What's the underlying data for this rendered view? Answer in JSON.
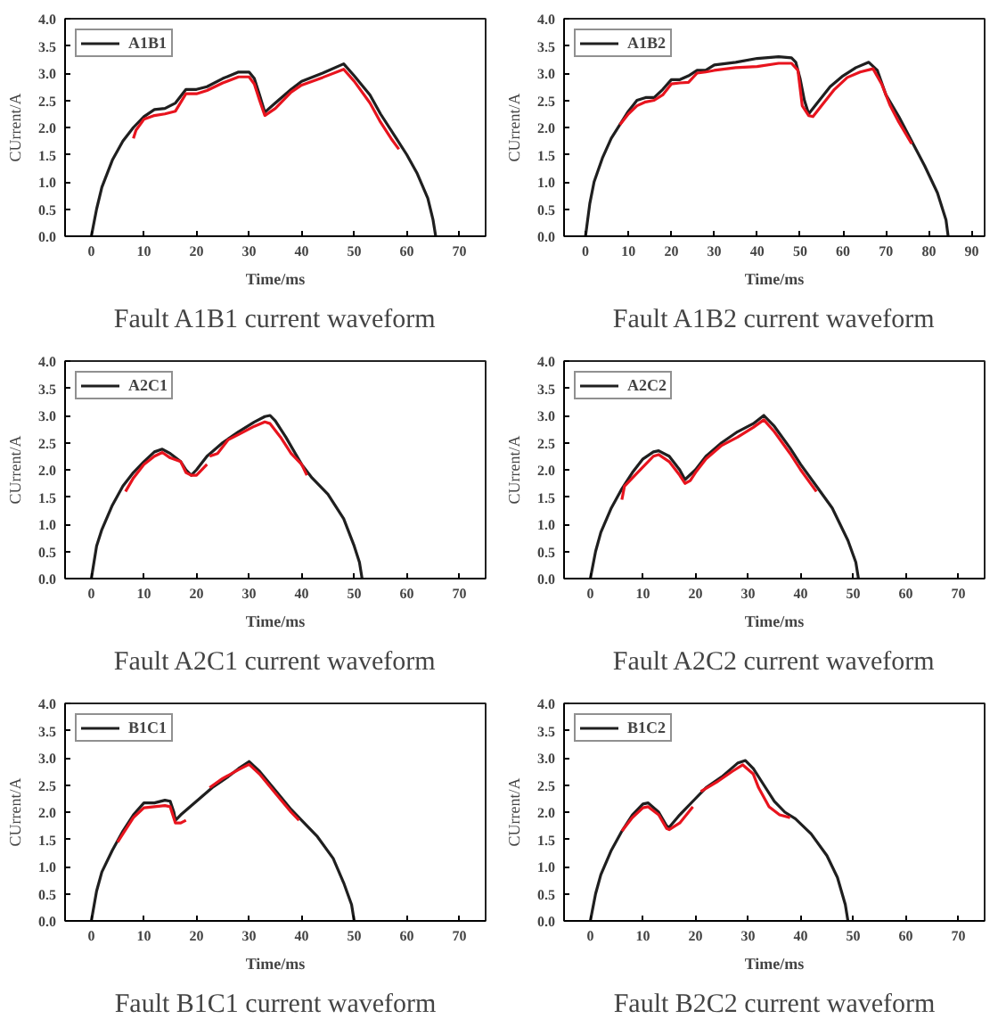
{
  "chart_data": [
    {
      "type": "line",
      "title": "Fault A1B1 current waveform",
      "xlabel": "Time/ms",
      "ylabel": "CUrrent/A",
      "xlim": [
        -5,
        75
      ],
      "xticks": [
        0,
        10,
        20,
        30,
        40,
        50,
        60,
        70
      ],
      "ylim": [
        0,
        4
      ],
      "yticks": [
        {
          "value": 0,
          "label": "0.0"
        },
        {
          "value": 0.5,
          "label": "0.5"
        },
        {
          "value": 1,
          "label": "1.0"
        },
        {
          "value": 1.5,
          "label": "1.5"
        },
        {
          "value": 2,
          "label": "2.0"
        },
        {
          "value": 2.5,
          "label": "2.5"
        },
        {
          "value": 3,
          "label": "3.0"
        },
        {
          "value": 3.5,
          "label": "3.5"
        },
        {
          "value": 4,
          "label": "4.0"
        }
      ],
      "grid": false,
      "legend": "top left",
      "marker": "none",
      "line_style": "solid",
      "series": [
        {
          "name": "A1B1",
          "color": "#1f1f1f",
          "x": [
            0,
            1,
            2,
            4,
            6,
            8,
            10,
            12,
            14,
            16,
            18,
            20,
            22,
            25,
            28,
            30,
            31,
            32,
            33,
            35,
            38,
            40,
            44,
            48,
            50,
            53,
            55,
            58,
            60,
            62,
            64,
            65,
            65.5
          ],
          "values": [
            0,
            0.5,
            0.9,
            1.4,
            1.75,
            2.0,
            2.2,
            2.33,
            2.35,
            2.45,
            2.7,
            2.7,
            2.75,
            2.9,
            3.02,
            3.02,
            2.9,
            2.6,
            2.28,
            2.45,
            2.7,
            2.85,
            3.0,
            3.17,
            2.95,
            2.6,
            2.25,
            1.8,
            1.5,
            1.15,
            0.7,
            0.3,
            0
          ]
        },
        {
          "color": "#e8141e",
          "x": [
            8,
            8.5,
            10,
            12,
            14,
            16,
            18,
            20,
            22,
            25,
            28,
            30,
            31,
            32,
            33,
            35,
            38,
            40,
            44,
            48,
            50,
            53,
            55,
            57,
            58.5
          ],
          "values": [
            1.8,
            1.95,
            2.15,
            2.22,
            2.25,
            2.3,
            2.62,
            2.62,
            2.68,
            2.82,
            2.93,
            2.93,
            2.8,
            2.5,
            2.22,
            2.35,
            2.65,
            2.78,
            2.92,
            3.07,
            2.85,
            2.45,
            2.1,
            1.8,
            1.6
          ]
        }
      ]
    },
    {
      "type": "line",
      "title": "Fault A1B2 current waveform",
      "xlabel": "Time/ms",
      "ylabel": "CUrrent/A",
      "xlim": [
        -5,
        93
      ],
      "xticks": [
        0,
        10,
        20,
        30,
        40,
        50,
        60,
        70,
        80,
        90
      ],
      "ylim": [
        0,
        4
      ],
      "yticks": [
        {
          "value": 0,
          "label": "0.0"
        },
        {
          "value": 0.5,
          "label": "0.5"
        },
        {
          "value": 1,
          "label": "1.0"
        },
        {
          "value": 1.5,
          "label": "1.5"
        },
        {
          "value": 2,
          "label": "2.0"
        },
        {
          "value": 2.5,
          "label": "2.5"
        },
        {
          "value": 3,
          "label": "3.0"
        },
        {
          "value": 3.5,
          "label": "3.5"
        },
        {
          "value": 4,
          "label": "4.0"
        }
      ],
      "grid": false,
      "legend": "top left",
      "marker": "none",
      "line_style": "solid",
      "series": [
        {
          "name": "A1B2",
          "color": "#1f1f1f",
          "x": [
            0,
            1,
            2,
            4,
            6,
            8,
            10,
            12,
            14,
            16,
            18,
            20,
            22,
            24,
            26,
            28,
            30,
            35,
            40,
            45,
            48,
            49,
            50,
            51,
            52,
            54,
            57,
            60,
            63,
            66,
            68,
            70,
            73,
            76,
            79,
            82,
            84,
            84.5
          ],
          "values": [
            0,
            0.6,
            1.0,
            1.45,
            1.8,
            2.05,
            2.3,
            2.5,
            2.55,
            2.55,
            2.7,
            2.88,
            2.88,
            2.95,
            3.05,
            3.05,
            3.15,
            3.2,
            3.27,
            3.3,
            3.28,
            3.2,
            2.9,
            2.5,
            2.25,
            2.45,
            2.75,
            2.95,
            3.1,
            3.2,
            3.05,
            2.6,
            2.2,
            1.75,
            1.3,
            0.8,
            0.3,
            0
          ]
        },
        {
          "color": "#e8141e",
          "x": [
            8,
            10,
            12,
            14,
            16,
            18,
            20,
            22,
            24,
            26,
            28,
            30,
            35,
            40,
            45,
            48,
            49.5,
            50.5,
            52,
            53,
            55,
            58,
            61,
            64,
            67,
            69,
            71,
            73,
            76
          ],
          "values": [
            2.05,
            2.25,
            2.4,
            2.47,
            2.5,
            2.6,
            2.8,
            2.82,
            2.83,
            3.0,
            3.02,
            3.05,
            3.1,
            3.12,
            3.18,
            3.18,
            3.05,
            2.4,
            2.22,
            2.2,
            2.4,
            2.7,
            2.92,
            3.02,
            3.08,
            2.8,
            2.4,
            2.1,
            1.7
          ]
        }
      ]
    },
    {
      "type": "line",
      "title": "Fault A2C1 current waveform",
      "xlabel": "Time/ms",
      "ylabel": "CUrrent/A",
      "xlim": [
        -5,
        75
      ],
      "xticks": [
        0,
        10,
        20,
        30,
        40,
        50,
        60,
        70
      ],
      "ylim": [
        0,
        4
      ],
      "yticks": [
        {
          "value": 0,
          "label": "0.0"
        },
        {
          "value": 0.5,
          "label": "0.5"
        },
        {
          "value": 1,
          "label": "1.0"
        },
        {
          "value": 1.5,
          "label": "1.5"
        },
        {
          "value": 2,
          "label": "2.0"
        },
        {
          "value": 2.5,
          "label": "2.5"
        },
        {
          "value": 3,
          "label": "3.0"
        },
        {
          "value": 3.5,
          "label": "3.5"
        },
        {
          "value": 4,
          "label": "4.0"
        }
      ],
      "grid": false,
      "legend": "top left",
      "marker": "none",
      "line_style": "solid",
      "series": [
        {
          "name": "A2C1",
          "color": "#1f1f1f",
          "x": [
            0,
            1,
            2,
            4,
            6,
            8,
            10,
            12,
            13.5,
            15,
            17,
            18,
            19,
            20,
            22,
            25,
            28,
            31,
            33,
            34,
            35,
            37,
            40,
            42,
            45,
            48,
            50,
            51,
            51.5
          ],
          "values": [
            0,
            0.6,
            0.9,
            1.35,
            1.7,
            1.95,
            2.15,
            2.33,
            2.38,
            2.3,
            2.15,
            2.0,
            1.9,
            2.0,
            2.25,
            2.5,
            2.7,
            2.88,
            2.98,
            3.0,
            2.9,
            2.6,
            2.1,
            1.85,
            1.55,
            1.1,
            0.6,
            0.3,
            0
          ]
        },
        {
          "color": "#e8141e",
          "x": [
            6.5,
            8,
            10,
            12,
            13.5,
            15,
            17,
            18,
            19,
            20,
            22,
            null,
            22.5,
            24,
            26,
            28,
            31,
            33,
            34,
            36,
            38,
            40,
            41
          ],
          "values": [
            1.6,
            1.85,
            2.1,
            2.25,
            2.32,
            2.22,
            2.15,
            1.95,
            1.9,
            1.9,
            2.1,
            null,
            2.25,
            2.3,
            2.55,
            2.65,
            2.8,
            2.88,
            2.85,
            2.6,
            2.3,
            2.1,
            1.9
          ]
        }
      ]
    },
    {
      "type": "line",
      "title": "Fault A2C2 current waveform",
      "xlabel": "Time/ms",
      "ylabel": "CUrrent/A",
      "xlim": [
        -5,
        75
      ],
      "xticks": [
        0,
        10,
        20,
        30,
        40,
        50,
        60,
        70
      ],
      "ylim": [
        0,
        4
      ],
      "yticks": [
        {
          "value": 0,
          "label": "0.0"
        },
        {
          "value": 0.5,
          "label": "0.5"
        },
        {
          "value": 1,
          "label": "1.0"
        },
        {
          "value": 1.5,
          "label": "1.5"
        },
        {
          "value": 2,
          "label": "2.0"
        },
        {
          "value": 2.5,
          "label": "2.5"
        },
        {
          "value": 3,
          "label": "3.0"
        },
        {
          "value": 3.5,
          "label": "3.5"
        },
        {
          "value": 4,
          "label": "4.0"
        }
      ],
      "grid": false,
      "legend": "top left",
      "marker": "none",
      "line_style": "solid",
      "series": [
        {
          "name": "A2C2",
          "color": "#1f1f1f",
          "x": [
            0,
            1,
            2,
            4,
            6,
            8,
            10,
            12,
            13,
            15,
            17,
            18,
            20,
            22,
            25,
            28,
            31,
            33,
            35,
            38,
            40,
            43,
            46,
            49,
            50.5,
            51
          ],
          "values": [
            0,
            0.5,
            0.85,
            1.3,
            1.65,
            1.95,
            2.2,
            2.33,
            2.35,
            2.25,
            2.0,
            1.82,
            2.0,
            2.25,
            2.5,
            2.7,
            2.85,
            3.0,
            2.8,
            2.4,
            2.1,
            1.7,
            1.3,
            0.7,
            0.3,
            0
          ]
        },
        {
          "color": "#e8141e",
          "x": [
            6,
            6.5,
            8,
            10,
            12,
            13,
            15,
            17,
            18,
            19,
            20,
            22,
            25,
            28,
            31,
            33,
            35,
            38,
            40,
            43
          ],
          "values": [
            1.45,
            1.7,
            1.85,
            2.05,
            2.25,
            2.28,
            2.15,
            1.9,
            1.75,
            1.8,
            1.95,
            2.2,
            2.45,
            2.6,
            2.78,
            2.92,
            2.7,
            2.3,
            2.0,
            1.6
          ]
        }
      ]
    },
    {
      "type": "line",
      "title": "Fault B1C1 current waveform",
      "xlabel": "Time/ms",
      "ylabel": "CUrrent/A",
      "xlim": [
        -5,
        75
      ],
      "xticks": [
        0,
        10,
        20,
        30,
        40,
        50,
        60,
        70
      ],
      "ylim": [
        0,
        4
      ],
      "yticks": [
        {
          "value": 0,
          "label": "0.0"
        },
        {
          "value": 0.5,
          "label": "0.5"
        },
        {
          "value": 1,
          "label": "1.0"
        },
        {
          "value": 1.5,
          "label": "1.5"
        },
        {
          "value": 2,
          "label": "2.0"
        },
        {
          "value": 2.5,
          "label": "2.5"
        },
        {
          "value": 3,
          "label": "3.0"
        },
        {
          "value": 3.5,
          "label": "3.5"
        },
        {
          "value": 4,
          "label": "4.0"
        }
      ],
      "grid": false,
      "legend": "top left",
      "marker": "none",
      "line_style": "solid",
      "series": [
        {
          "name": "B1C1",
          "color": "#1f1f1f",
          "x": [
            0,
            1,
            2,
            4,
            6,
            8,
            10,
            12,
            14,
            15,
            15.7,
            16,
            17,
            20,
            23,
            26,
            28,
            30,
            32,
            35,
            38,
            40,
            43,
            46,
            48,
            49.5,
            50
          ],
          "values": [
            0,
            0.55,
            0.9,
            1.3,
            1.65,
            1.95,
            2.17,
            2.17,
            2.22,
            2.2,
            2.0,
            1.85,
            1.95,
            2.2,
            2.45,
            2.65,
            2.8,
            2.93,
            2.75,
            2.4,
            2.05,
            1.85,
            1.55,
            1.15,
            0.7,
            0.3,
            0
          ]
        },
        {
          "color": "#e8141e",
          "x": [
            5,
            6,
            8,
            10,
            12,
            14,
            15,
            16,
            17,
            18,
            null,
            22.5,
            25,
            28,
            30,
            32,
            35,
            38,
            39.5
          ],
          "values": [
            1.45,
            1.6,
            1.9,
            2.08,
            2.1,
            2.12,
            2.1,
            1.8,
            1.8,
            1.85,
            null,
            2.45,
            2.62,
            2.78,
            2.88,
            2.7,
            2.35,
            2.0,
            1.85
          ]
        }
      ]
    },
    {
      "type": "line",
      "title": "Fault B2C2 current waveform",
      "xlabel": "Time/ms",
      "ylabel": "CUrrent/A",
      "xlim": [
        -5,
        75
      ],
      "xticks": [
        0,
        10,
        20,
        30,
        40,
        50,
        60,
        70
      ],
      "ylim": [
        0,
        4
      ],
      "yticks": [
        {
          "value": 0,
          "label": "0.0"
        },
        {
          "value": 0.5,
          "label": "0.5"
        },
        {
          "value": 1,
          "label": "1.0"
        },
        {
          "value": 1.5,
          "label": "1.5"
        },
        {
          "value": 2,
          "label": "2.0"
        },
        {
          "value": 2.5,
          "label": "2.5"
        },
        {
          "value": 3,
          "label": "3.0"
        },
        {
          "value": 3.5,
          "label": "3.5"
        },
        {
          "value": 4,
          "label": "4.0"
        }
      ],
      "grid": false,
      "legend": "top left",
      "marker": "none",
      "line_style": "solid",
      "series": [
        {
          "name": "B1C2",
          "color": "#1f1f1f",
          "x": [
            0,
            1,
            2,
            4,
            6,
            8,
            10,
            11,
            13,
            14.5,
            15,
            17,
            20,
            22,
            25,
            28,
            29.5,
            31,
            33,
            35,
            37,
            39,
            42,
            45,
            47,
            48.5,
            49
          ],
          "values": [
            0,
            0.5,
            0.85,
            1.3,
            1.65,
            1.95,
            2.15,
            2.17,
            2.0,
            1.75,
            1.72,
            1.95,
            2.25,
            2.45,
            2.65,
            2.9,
            2.95,
            2.8,
            2.5,
            2.2,
            2.0,
            1.88,
            1.6,
            1.2,
            0.8,
            0.3,
            0
          ]
        },
        {
          "color": "#e8141e",
          "x": [
            6,
            8,
            10,
            11,
            13,
            14.5,
            15,
            17,
            19.5,
            null,
            21,
            24,
            27,
            29,
            31,
            32,
            34,
            36,
            38
          ],
          "values": [
            1.65,
            1.9,
            2.08,
            2.1,
            1.95,
            1.7,
            1.68,
            1.8,
            2.1,
            null,
            2.38,
            2.55,
            2.75,
            2.87,
            2.7,
            2.45,
            2.1,
            1.95,
            1.9
          ]
        }
      ]
    }
  ]
}
